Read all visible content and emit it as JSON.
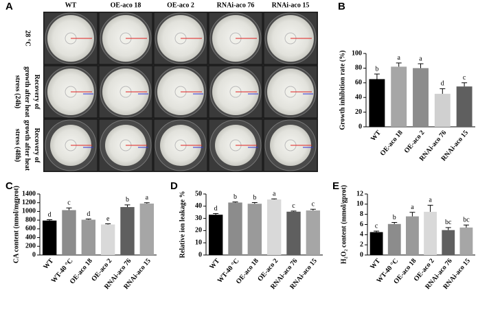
{
  "panel_a": {
    "label": "A",
    "columns": [
      "WT",
      "OE-aco 18",
      "OE-aco 2",
      "RNAi-aco 76",
      "RNAi-aco 15"
    ],
    "rows": [
      "28 °C",
      "Recovery of growth after heat stress (24h)",
      "Recovery of growth after heat stress (48h)"
    ]
  },
  "chart_data": [
    {
      "type": "bar",
      "panel": "B",
      "ylabel": "Growth inhibition rate (%)",
      "categories": [
        "WT",
        "OE-aco 18",
        "OE-aco 2",
        "RNAi-aco 76",
        "RNAi-aco 15"
      ],
      "values": [
        65,
        82,
        80,
        45,
        55
      ],
      "errors": [
        7,
        5,
        6,
        7,
        5
      ],
      "letters": [
        "b",
        "a",
        "a",
        "d",
        "c"
      ],
      "colors": [
        "#000000",
        "#a6a6a6",
        "#8c8c8c",
        "#d0d0d0",
        "#5f5f5f"
      ],
      "ylim": [
        0,
        100
      ],
      "yticks": [
        0,
        20,
        40,
        60,
        80,
        100
      ]
    },
    {
      "type": "bar",
      "panel": "C",
      "ylabel": "CA content (nmol/mgprot)",
      "categories": [
        "WT",
        "WT-40 °C",
        "OE-aco 18",
        "OE-aco 2",
        "RNAi-aco 76",
        "RNAi-aco 15"
      ],
      "values": [
        790,
        1030,
        810,
        700,
        1100,
        1180
      ],
      "errors": [
        20,
        50,
        15,
        15,
        50,
        20
      ],
      "letters": [
        "d",
        "c",
        "d",
        "e",
        "b",
        "a"
      ],
      "colors": [
        "#000000",
        "#8c8c8c",
        "#9a9a9a",
        "#d9d9d9",
        "#5f5f5f",
        "#a6a6a6"
      ],
      "ylim": [
        0,
        1400
      ],
      "yticks": [
        0,
        200,
        400,
        600,
        800,
        1000,
        1200,
        1400
      ]
    },
    {
      "type": "bar",
      "panel": "D",
      "ylabel": "Relative ion leakage %",
      "categories": [
        "WT",
        "WT-40 °C",
        "OE-aco 18",
        "OE-aco 2",
        "RNAi-aco 76",
        "RNAi-aco 15"
      ],
      "values": [
        33,
        43,
        42,
        45.5,
        35.5,
        36.5
      ],
      "errors": [
        1,
        0.5,
        1,
        0.5,
        0.5,
        1
      ],
      "letters": [
        "d",
        "b",
        "b",
        "a",
        "c",
        "c"
      ],
      "colors": [
        "#000000",
        "#8c8c8c",
        "#9a9a9a",
        "#d9d9d9",
        "#5f5f5f",
        "#a6a6a6"
      ],
      "ylim": [
        0,
        50
      ],
      "yticks": [
        0,
        10,
        20,
        30,
        40,
        50
      ]
    },
    {
      "type": "bar",
      "panel": "E",
      "ylabel": "H₂O₂ content (mmol/gprot)",
      "categories": [
        "WT",
        "WT-40 °C",
        "OE-aco 18",
        "OE-aco 2",
        "RNAi-aco 76",
        "RNAi-aco 15"
      ],
      "values": [
        4.5,
        6.1,
        7.6,
        8.5,
        4.9,
        5.4
      ],
      "errors": [
        0.2,
        0.3,
        0.8,
        1.3,
        0.5,
        0.5
      ],
      "letters": [
        "c",
        "b",
        "a",
        "a",
        "bc",
        "bc"
      ],
      "colors": [
        "#000000",
        "#8c8c8c",
        "#9a9a9a",
        "#d9d9d9",
        "#5f5f5f",
        "#a6a6a6"
      ],
      "ylim": [
        0,
        12
      ],
      "yticks": [
        0,
        2,
        4,
        6,
        8,
        10,
        12
      ]
    }
  ]
}
